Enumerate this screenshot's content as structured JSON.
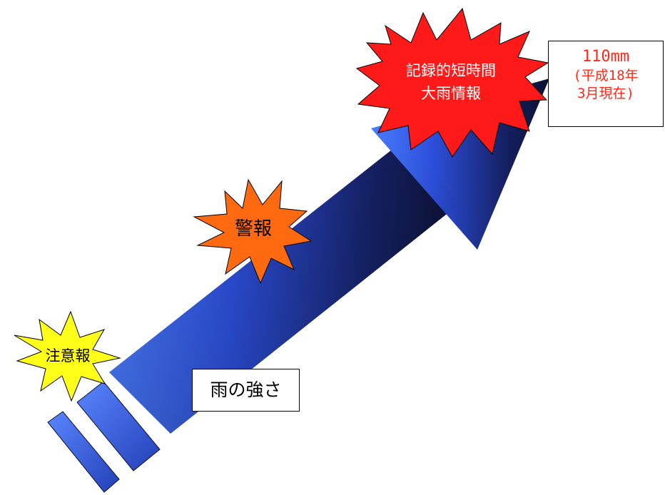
{
  "bursts": {
    "advisory": {
      "label": "注意報",
      "color": "#ffff1a"
    },
    "warning": {
      "label": "警報",
      "color": "#ff6a10"
    },
    "record": {
      "line1": "記録的短時間",
      "line2": "大雨情報",
      "color": "#ff1a1a"
    }
  },
  "record_box": {
    "value": "110mm",
    "note_line1": "(平成18年",
    "note_line2": "3月現在)",
    "text_color": "#ff2a1a"
  },
  "arrow": {
    "label": "雨の強さ",
    "color_light": "#3a6cff",
    "color_dark": "#0b1030"
  }
}
